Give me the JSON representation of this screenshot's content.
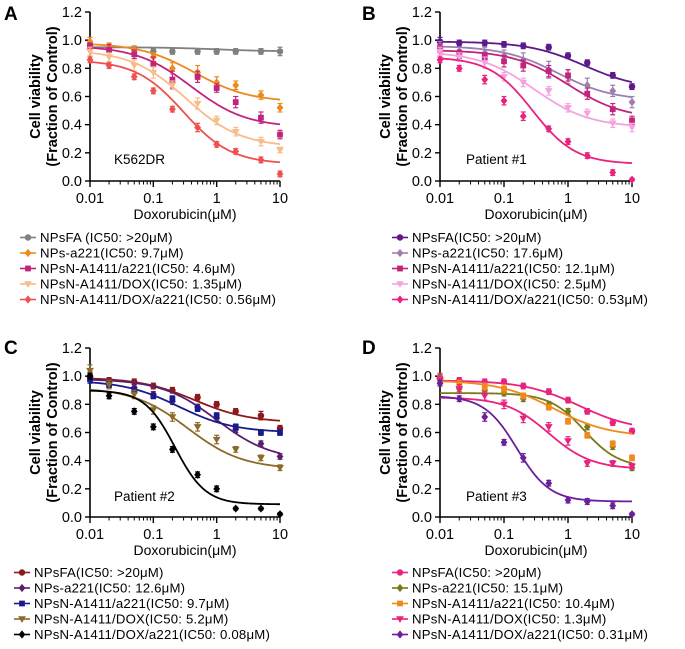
{
  "figure": {
    "common": {
      "xlabel": "Doxorubicin(μM)",
      "ylabel_line1": "Cell viability",
      "ylabel_line2": "(Fraction of Control)",
      "x_ticks": [
        "0.01",
        "0.1",
        "1",
        "10"
      ],
      "y_ticks": [
        "0.0",
        "0.2",
        "0.4",
        "0.6",
        "0.8",
        "1.0",
        "1.2"
      ]
    }
  },
  "chart_data": [
    {
      "panel": "A",
      "type": "scatter",
      "title": "K562DR",
      "xlabel": "Doxorubicin(μM)",
      "ylabel": "Cell viability (Fraction of Control)",
      "x_scale": "log",
      "xlim": [
        0.01,
        10
      ],
      "ylim": [
        0,
        1.2
      ],
      "legend_position": "below",
      "series": [
        {
          "name": "NPsFA (IC50: >20μM)",
          "color": "#808080",
          "marker": "circle",
          "x": [
            0.01,
            0.02,
            0.05,
            0.1,
            0.2,
            0.5,
            1,
            2,
            5,
            10
          ],
          "y": [
            0.96,
            0.94,
            0.93,
            0.92,
            0.92,
            0.92,
            0.92,
            0.92,
            0.92,
            0.92
          ],
          "err": [
            0.03,
            0.02,
            0.02,
            0.02,
            0.02,
            0.02,
            0.02,
            0.02,
            0.02,
            0.03
          ],
          "fit": {
            "top": 0.95,
            "bottom": 0.92,
            "ic50": 1,
            "hill": 1
          }
        },
        {
          "name": "NPs-a221(IC50: 9.7μM)",
          "color": "#ed8a1c",
          "marker": "diamond",
          "x": [
            0.01,
            0.02,
            0.05,
            0.1,
            0.2,
            0.5,
            1,
            2,
            5,
            10
          ],
          "y": [
            0.99,
            0.95,
            0.93,
            0.88,
            0.8,
            0.77,
            0.7,
            0.68,
            0.61,
            0.52
          ],
          "err": [
            0.03,
            0.03,
            0.03,
            0.03,
            0.04,
            0.05,
            0.04,
            0.03,
            0.03,
            0.03
          ],
          "fit": {
            "top": 0.98,
            "bottom": 0.56,
            "ic50": 0.45,
            "hill": 1
          }
        },
        {
          "name": "NPsN-A1411/a221(IC50: 4.6μM)",
          "color": "#c2237d",
          "marker": "square",
          "x": [
            0.01,
            0.02,
            0.05,
            0.1,
            0.2,
            0.5,
            1,
            2,
            5,
            10
          ],
          "y": [
            0.96,
            0.93,
            0.9,
            0.83,
            0.72,
            0.74,
            0.66,
            0.56,
            0.45,
            0.33
          ],
          "err": [
            0.02,
            0.04,
            0.03,
            0.05,
            0.06,
            0.04,
            0.03,
            0.04,
            0.04,
            0.03
          ],
          "fit": {
            "top": 0.96,
            "bottom": 0.38,
            "ic50": 0.4,
            "hill": 1
          }
        },
        {
          "name": "NPsN-A1411/DOX(IC50: 1.35μM)",
          "color": "#f7bc8a",
          "marker": "triangle-down",
          "x": [
            0.01,
            0.02,
            0.05,
            0.1,
            0.2,
            0.5,
            1,
            2,
            5,
            10
          ],
          "y": [
            0.92,
            0.88,
            0.82,
            0.77,
            0.68,
            0.55,
            0.43,
            0.35,
            0.28,
            0.22
          ],
          "err": [
            0.03,
            0.03,
            0.04,
            0.04,
            0.03,
            0.04,
            0.03,
            0.03,
            0.03,
            0.02
          ],
          "fit": {
            "top": 0.93,
            "bottom": 0.24,
            "ic50": 0.33,
            "hill": 1
          }
        },
        {
          "name": "NPsN-A1411/DOX/a221(IC50: 0.56μM)",
          "color": "#ef5050",
          "marker": "diamond",
          "x": [
            0.01,
            0.02,
            0.05,
            0.1,
            0.2,
            0.5,
            1,
            2,
            5,
            10
          ],
          "y": [
            0.86,
            0.82,
            0.74,
            0.64,
            0.51,
            0.38,
            0.26,
            0.21,
            0.15,
            0.05
          ],
          "err": [
            0.02,
            0.02,
            0.02,
            0.02,
            0.02,
            0.03,
            0.02,
            0.02,
            0.02,
            0.02
          ],
          "fit": {
            "top": 0.86,
            "bottom": 0.12,
            "ic50": 0.3,
            "hill": 1.15
          }
        }
      ]
    },
    {
      "panel": "B",
      "type": "scatter",
      "title": "Patient #1",
      "xlabel": "Doxorubicin(μM)",
      "ylabel": "Cell viability (Fraction of Control)",
      "x_scale": "log",
      "xlim": [
        0.01,
        10
      ],
      "ylim": [
        0,
        1.2
      ],
      "legend_position": "below",
      "series": [
        {
          "name": "NPsFA(IC50: >20μM)",
          "color": "#5c1a8c",
          "marker": "circle",
          "x": [
            0.01,
            0.02,
            0.05,
            0.1,
            0.2,
            0.5,
            1,
            2,
            5,
            10
          ],
          "y": [
            0.99,
            0.98,
            0.98,
            0.97,
            0.96,
            0.95,
            0.89,
            0.84,
            0.75,
            0.67
          ],
          "err": [
            0.03,
            0.02,
            0.02,
            0.02,
            0.02,
            0.02,
            0.02,
            0.02,
            0.02,
            0.02
          ],
          "fit": {
            "top": 0.99,
            "bottom": 0.65,
            "ic50": 1.8,
            "hill": 1
          }
        },
        {
          "name": "NPs-a221(IC50: 17.6μM)",
          "color": "#9c7fae",
          "marker": "diamond",
          "x": [
            0.01,
            0.02,
            0.05,
            0.1,
            0.2,
            0.5,
            1,
            2,
            5,
            10
          ],
          "y": [
            0.96,
            0.92,
            0.91,
            0.89,
            0.86,
            0.79,
            0.74,
            0.68,
            0.64,
            0.56
          ],
          "err": [
            0.03,
            0.03,
            0.04,
            0.04,
            0.05,
            0.06,
            0.05,
            0.05,
            0.04,
            0.04
          ],
          "fit": {
            "top": 0.96,
            "bottom": 0.57,
            "ic50": 0.7,
            "hill": 1
          }
        },
        {
          "name": "NPsN-A1411/a221(IC50: 12.1μM)",
          "color": "#c2237d",
          "marker": "square",
          "x": [
            0.01,
            0.02,
            0.05,
            0.1,
            0.2,
            0.5,
            1,
            2,
            5,
            10
          ],
          "y": [
            0.94,
            0.9,
            0.88,
            0.85,
            0.82,
            0.78,
            0.75,
            0.62,
            0.51,
            0.43
          ],
          "err": [
            0.03,
            0.03,
            0.03,
            0.04,
            0.04,
            0.04,
            0.04,
            0.04,
            0.04,
            0.03
          ],
          "fit": {
            "top": 0.93,
            "bottom": 0.44,
            "ic50": 1.0,
            "hill": 1
          }
        },
        {
          "name": "NPsN-A1411/DOX(IC50: 2.5μM)",
          "color": "#f5a3e0",
          "marker": "triangle-down",
          "x": [
            0.01,
            0.02,
            0.05,
            0.1,
            0.2,
            0.5,
            1,
            2,
            5,
            10
          ],
          "y": [
            0.92,
            0.88,
            0.84,
            0.74,
            0.7,
            0.64,
            0.52,
            0.48,
            0.41,
            0.38
          ],
          "err": [
            0.03,
            0.03,
            0.04,
            0.03,
            0.03,
            0.03,
            0.03,
            0.03,
            0.03,
            0.03
          ],
          "fit": {
            "top": 0.92,
            "bottom": 0.38,
            "ic50": 0.3,
            "hill": 1
          }
        },
        {
          "name": "NPsN-A1411/DOX/a221(IC50: 0.53μM)",
          "color": "#e8237e",
          "marker": "diamond",
          "x": [
            0.01,
            0.02,
            0.05,
            0.1,
            0.2,
            0.5,
            1,
            2,
            5,
            10
          ],
          "y": [
            0.86,
            0.8,
            0.72,
            0.57,
            0.46,
            0.37,
            0.28,
            0.18,
            0.06,
            0.01
          ],
          "err": [
            0.02,
            0.02,
            0.03,
            0.03,
            0.03,
            0.02,
            0.02,
            0.02,
            0.02,
            0.01
          ],
          "fit": {
            "top": 0.88,
            "bottom": 0.12,
            "ic50": 0.28,
            "hill": 1.3
          }
        }
      ]
    },
    {
      "panel": "C",
      "type": "scatter",
      "title": "Patient #2",
      "xlabel": "Doxorubicin(μM)",
      "ylabel": "Cell viability (Fraction of Control)",
      "x_scale": "log",
      "xlim": [
        0.01,
        10
      ],
      "ylim": [
        0,
        1.2
      ],
      "legend_position": "below",
      "series": [
        {
          "name": "NPsFA(IC50: >20μM)",
          "color": "#8c1a1a",
          "marker": "circle",
          "x": [
            0.01,
            0.02,
            0.05,
            0.1,
            0.2,
            0.5,
            1,
            2,
            5,
            10
          ],
          "y": [
            1.0,
            0.97,
            0.96,
            0.93,
            0.9,
            0.85,
            0.8,
            0.75,
            0.72,
            0.63
          ],
          "err": [
            0.03,
            0.02,
            0.02,
            0.02,
            0.02,
            0.02,
            0.02,
            0.02,
            0.03,
            0.02
          ],
          "fit": {
            "top": 0.99,
            "bottom": 0.67,
            "ic50": 0.45,
            "hill": 1
          }
        },
        {
          "name": "NPs-a221(IC50: 12.6μM)",
          "color": "#5a1f6e",
          "marker": "diamond",
          "x": [
            0.01,
            0.02,
            0.05,
            0.1,
            0.2,
            0.5,
            1,
            2,
            5,
            10
          ],
          "y": [
            0.99,
            0.94,
            0.92,
            0.87,
            0.82,
            0.78,
            0.7,
            0.62,
            0.52,
            0.43
          ],
          "err": [
            0.03,
            0.02,
            0.02,
            0.02,
            0.02,
            0.02,
            0.02,
            0.02,
            0.02,
            0.02
          ],
          "fit": {
            "top": 0.98,
            "bottom": 0.4,
            "ic50": 1.0,
            "hill": 1
          }
        },
        {
          "name": "NPsN-A1411/a221(IC50: 9.7μM)",
          "color": "#1a1a8c",
          "marker": "square",
          "x": [
            0.01,
            0.02,
            0.05,
            0.1,
            0.2,
            0.5,
            1,
            2,
            5,
            10
          ],
          "y": [
            0.98,
            0.94,
            0.9,
            0.86,
            0.84,
            0.77,
            0.72,
            0.64,
            0.6,
            0.6
          ],
          "err": [
            0.03,
            0.02,
            0.02,
            0.02,
            0.02,
            0.02,
            0.02,
            0.02,
            0.02,
            0.02
          ],
          "fit": {
            "top": 0.97,
            "bottom": 0.6,
            "ic50": 0.25,
            "hill": 1
          }
        },
        {
          "name": "NPsN-A1411/DOX(IC50: 5.2μM)",
          "color": "#8c6a2a",
          "marker": "triangle-down",
          "x": [
            0.01,
            0.02,
            0.05,
            0.1,
            0.2,
            0.5,
            1,
            2,
            5,
            10
          ],
          "y": [
            1.04,
            0.94,
            0.87,
            0.76,
            0.71,
            0.64,
            0.55,
            0.48,
            0.42,
            0.35
          ],
          "err": [
            0.04,
            0.03,
            0.03,
            0.03,
            0.03,
            0.03,
            0.03,
            0.02,
            0.02,
            0.02
          ],
          "fit": {
            "top": 0.92,
            "bottom": 0.34,
            "ic50": 0.35,
            "hill": 1
          }
        },
        {
          "name": "NPsN-A1411/DOX/a221(IC50: 0.08μM)",
          "color": "#000000",
          "marker": "diamond",
          "x": [
            0.01,
            0.02,
            0.05,
            0.1,
            0.2,
            0.5,
            1,
            2,
            5,
            10
          ],
          "y": [
            1.0,
            0.86,
            0.75,
            0.64,
            0.48,
            0.3,
            0.2,
            0.06,
            0.06,
            0.02
          ],
          "err": [
            0.02,
            0.02,
            0.02,
            0.02,
            0.02,
            0.02,
            0.02,
            0.01,
            0.01,
            0.01
          ],
          "fit": {
            "top": 0.9,
            "bottom": 0.09,
            "ic50": 0.22,
            "hill": 1.8
          }
        }
      ]
    },
    {
      "panel": "D",
      "type": "scatter",
      "title": "Patient #3",
      "xlabel": "Doxorubicin(μM)",
      "ylabel": "Cell viability (Fraction of Control)",
      "x_scale": "log",
      "xlim": [
        0.01,
        10
      ],
      "ylim": [
        0,
        1.2
      ],
      "legend_position": "below",
      "series": [
        {
          "name": "NPsFA(IC50: >20μM)",
          "color": "#e8237e",
          "marker": "circle",
          "x": [
            0.01,
            0.02,
            0.05,
            0.1,
            0.2,
            0.5,
            1,
            2,
            5,
            10
          ],
          "y": [
            0.99,
            0.97,
            0.96,
            0.96,
            0.93,
            0.89,
            0.83,
            0.75,
            0.67,
            0.61
          ],
          "err": [
            0.03,
            0.02,
            0.02,
            0.02,
            0.02,
            0.02,
            0.02,
            0.02,
            0.02,
            0.02
          ],
          "fit": {
            "top": 0.97,
            "bottom": 0.61,
            "ic50": 1.5,
            "hill": 1
          }
        },
        {
          "name": "NPs-a221(IC50: 15.1μM)",
          "color": "#7a7a1a",
          "marker": "diamond",
          "x": [
            0.01,
            0.02,
            0.05,
            0.1,
            0.2,
            0.5,
            1,
            2,
            5,
            10
          ],
          "y": [
            0.98,
            0.91,
            0.9,
            0.88,
            0.84,
            0.8,
            0.75,
            0.64,
            0.5,
            0.35
          ],
          "err": [
            0.03,
            0.02,
            0.02,
            0.02,
            0.02,
            0.02,
            0.02,
            0.02,
            0.02,
            0.02
          ],
          "fit": {
            "top": 0.88,
            "bottom": 0.35,
            "ic50": 1.8,
            "hill": 1.6
          }
        },
        {
          "name": "NPsN-A1411/a221(IC50: 10.4μM)",
          "color": "#f08a1c",
          "marker": "square",
          "x": [
            0.01,
            0.02,
            0.05,
            0.1,
            0.2,
            0.5,
            1,
            2,
            5,
            10
          ],
          "y": [
            0.97,
            0.94,
            0.92,
            0.91,
            0.86,
            0.78,
            0.68,
            0.58,
            0.52,
            0.42
          ],
          "err": [
            0.03,
            0.03,
            0.03,
            0.03,
            0.02,
            0.02,
            0.02,
            0.02,
            0.02,
            0.02
          ],
          "fit": {
            "top": 0.97,
            "bottom": 0.57,
            "ic50": 0.6,
            "hill": 1
          }
        },
        {
          "name": "NPsN-A1411/DOX(IC50: 1.3μM)",
          "color": "#e8237e",
          "marker": "triangle-down",
          "x": [
            0.01,
            0.02,
            0.05,
            0.1,
            0.2,
            0.5,
            1,
            2,
            5,
            10
          ],
          "y": [
            0.97,
            0.91,
            0.86,
            0.8,
            0.7,
            0.64,
            0.54,
            0.38,
            0.38,
            0.36
          ],
          "err": [
            0.03,
            0.03,
            0.03,
            0.03,
            0.03,
            0.03,
            0.03,
            0.02,
            0.02,
            0.02
          ],
          "fit": {
            "top": 0.85,
            "bottom": 0.34,
            "ic50": 0.5,
            "hill": 1.3
          }
        },
        {
          "name": "NPsN-A1411/DOX/a221(IC50: 0.31μM)",
          "color": "#6a1f9c",
          "marker": "diamond",
          "x": [
            0.01,
            0.02,
            0.05,
            0.1,
            0.2,
            0.5,
            1,
            2,
            5,
            10
          ],
          "y": [
            0.95,
            0.84,
            0.71,
            0.53,
            0.42,
            0.24,
            0.12,
            0.11,
            0.08,
            0.02
          ],
          "err": [
            0.02,
            0.02,
            0.03,
            0.02,
            0.03,
            0.02,
            0.02,
            0.02,
            0.02,
            0.01
          ],
          "fit": {
            "top": 0.86,
            "bottom": 0.11,
            "ic50": 0.16,
            "hill": 1.7
          }
        }
      ]
    }
  ]
}
